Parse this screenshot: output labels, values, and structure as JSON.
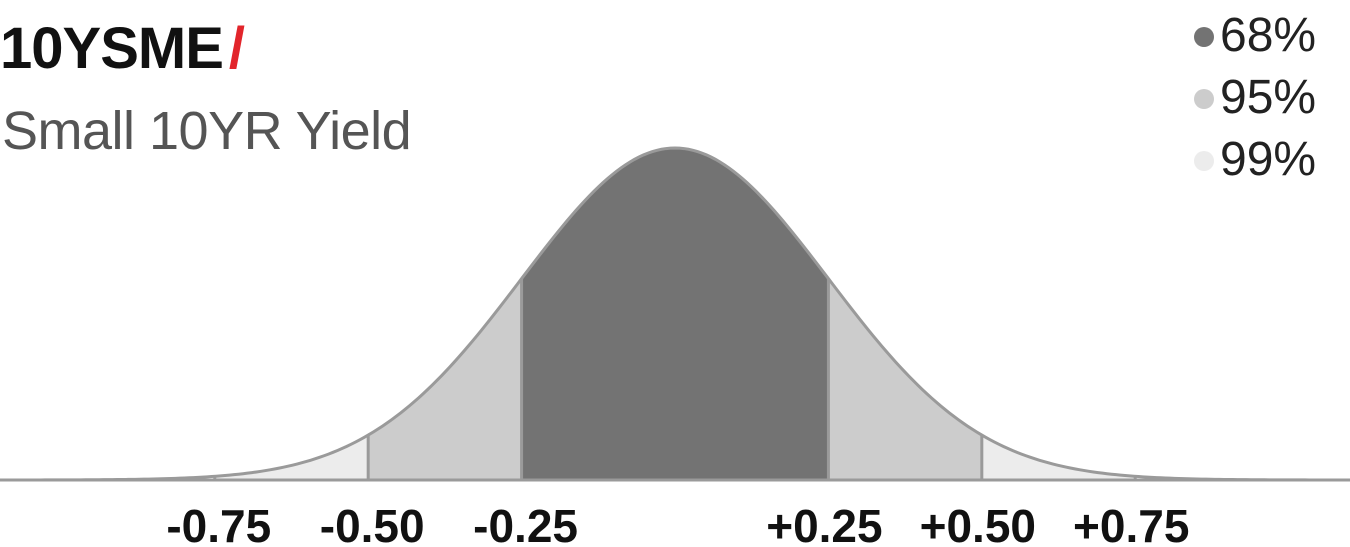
{
  "header": {
    "title": "10YSME",
    "title_slash": "/",
    "subtitle": "Small 10YR Yield",
    "accent_color": "#e2252b"
  },
  "chart_data": {
    "type": "area",
    "description_kind": "normal-distribution",
    "mean": 0,
    "std": 0.25,
    "xlim": [
      -1.1,
      1.1
    ],
    "x_ticks": [
      {
        "value": -0.75,
        "label": "-0.75"
      },
      {
        "value": -0.5,
        "label": "-0.50"
      },
      {
        "value": -0.25,
        "label": "-0.25"
      },
      {
        "value": 0.25,
        "label": "+0.25"
      },
      {
        "value": 0.5,
        "label": "+0.50"
      },
      {
        "value": 0.75,
        "label": "+0.75"
      }
    ],
    "bands": [
      {
        "name": "68%",
        "range": [
          -0.25,
          0.25
        ],
        "color": "#737373"
      },
      {
        "name": "95%",
        "range": [
          -0.5,
          0.5
        ],
        "color": "#cccccc"
      },
      {
        "name": "99%",
        "range": [
          -0.75,
          0.75
        ],
        "color": "#ececec"
      }
    ],
    "curve_color": "#9a9a9a",
    "grid": false,
    "legend_position": "top-right"
  }
}
